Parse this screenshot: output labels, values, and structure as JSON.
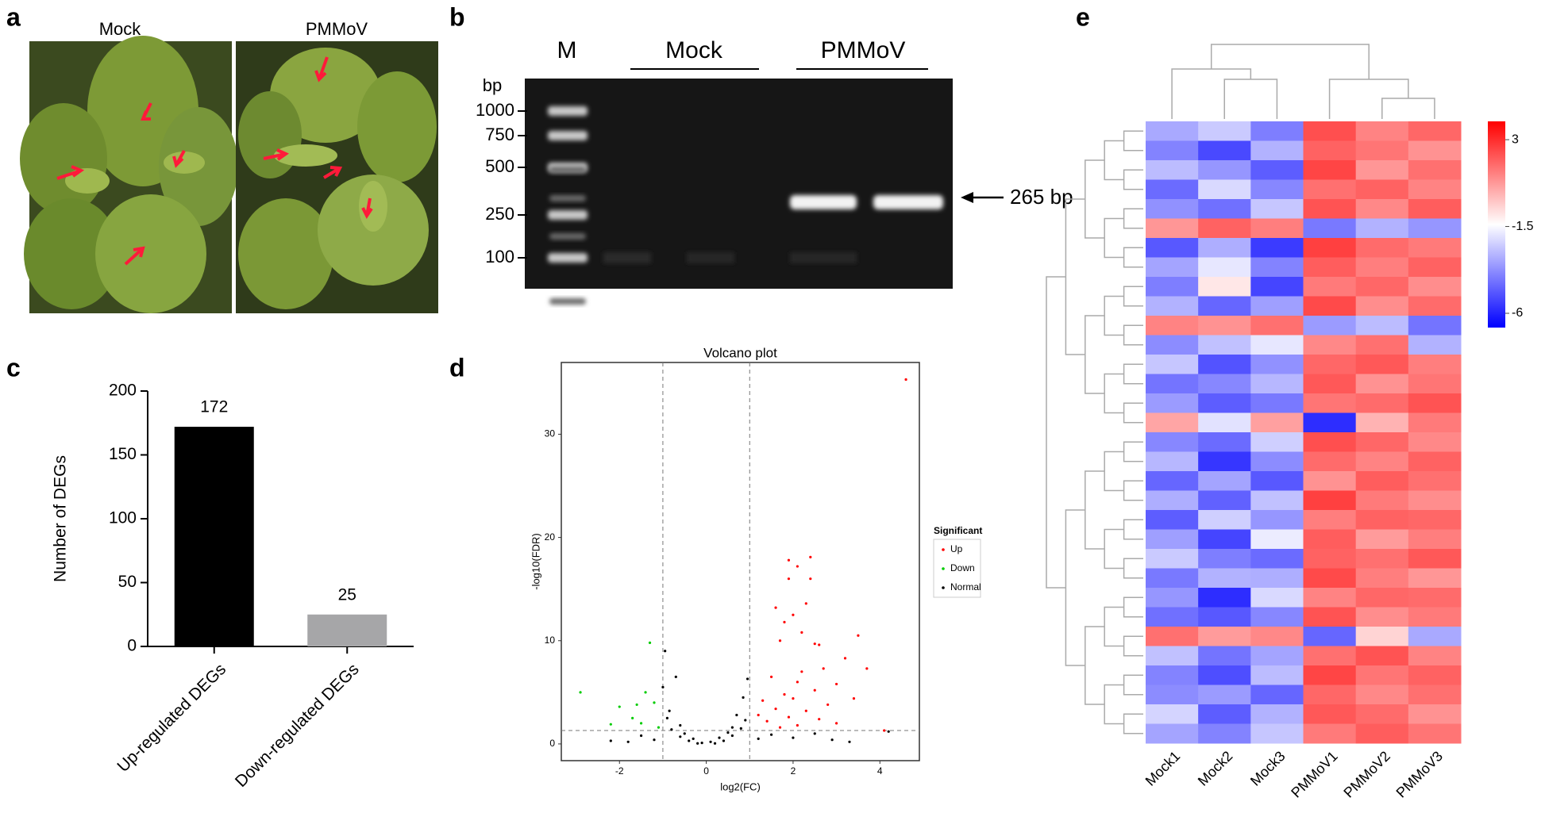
{
  "panel_labels": [
    "a",
    "b",
    "c",
    "d",
    "e"
  ],
  "photos": {
    "labels": [
      "Mock",
      "PMMoV"
    ]
  },
  "gel": {
    "lane_marker": "M",
    "groups": [
      "Mock",
      "PMMoV"
    ],
    "unit": "bp",
    "ladder": [
      1000,
      750,
      500,
      250,
      100
    ],
    "band_label": "265 bp"
  },
  "chart_data": [
    {
      "type": "bar",
      "categories": [
        "Up-regulated DEGs",
        "Down-regulated DEGs"
      ],
      "values": [
        172,
        25
      ],
      "colors": [
        "#000000",
        "#a6a6a8"
      ],
      "y_label": "Number of DEGs",
      "ylim": [
        0,
        200
      ],
      "yticks": [
        0,
        50,
        100,
        150,
        200
      ]
    },
    {
      "type": "scatter",
      "title": "Volcano plot",
      "x_label": "log2(FC)",
      "y_label": "-log10(FDR)",
      "xlim": [
        -3.34,
        4.91
      ],
      "ylim": [
        -1.62,
        36.95
      ],
      "xticks": [
        -2,
        0,
        2,
        4
      ],
      "yticks": [
        0,
        10,
        20,
        30
      ],
      "thresholds": {
        "x": [
          -1,
          1
        ],
        "y": 1.3
      },
      "legend_title": "Significant",
      "series": [
        {
          "name": "Up",
          "color": "#ff0000",
          "x": [
            4.6,
            2.4,
            1.9,
            2.1,
            1.9,
            2.4,
            2.3,
            1.6,
            2.0,
            1.8,
            2.2,
            3.5,
            1.7,
            2.5,
            2.6,
            3.2,
            2.7,
            3.7,
            2.2,
            1.5,
            2.1,
            3.0,
            2.5,
            1.8,
            3.4,
            2.0,
            1.3,
            2.8,
            1.6,
            2.3,
            1.2,
            1.9,
            2.6,
            1.4,
            3.0,
            2.1,
            1.7,
            4.1
          ],
          "values": [
            35.3,
            18.1,
            17.8,
            17.2,
            16,
            16,
            13.6,
            13.2,
            12.5,
            11.8,
            10.8,
            10.5,
            10,
            9.7,
            9.6,
            8.3,
            7.3,
            7.3,
            7,
            6.5,
            6,
            5.8,
            5.2,
            4.8,
            4.4,
            4.4,
            4.2,
            3.8,
            3.4,
            3.2,
            2.8,
            2.6,
            2.4,
            2.2,
            2.0,
            1.8,
            1.6,
            1.3
          ]
        },
        {
          "name": "Down",
          "color": "#00cc00",
          "x": [
            -1.3,
            -2.9,
            -1.4,
            -1.2,
            -2.0,
            -1.6,
            -1.7,
            -1.5,
            -1.1,
            -2.2
          ],
          "values": [
            9.8,
            5,
            5,
            4,
            3.6,
            3.8,
            2.5,
            2.0,
            1.6,
            1.9
          ]
        },
        {
          "name": "Normal",
          "color": "#000000",
          "x": [
            -0.2,
            0.2,
            -0.4,
            0.4,
            -0.6,
            0.6,
            -0.8,
            0.8,
            -0.9,
            0.9,
            -0.95,
            -1.0,
            -0.7,
            0.85,
            0.95,
            -0.85,
            0.7,
            -0.5,
            0.5,
            -1.5,
            1.5,
            -1.2,
            1.2,
            2.0,
            2.5,
            -2.2,
            2.9,
            -1.8,
            3.3,
            4.2,
            -0.3,
            0.3,
            -0.1,
            0.1,
            -0.6,
            0.6
          ],
          "values": [
            0.05,
            0.05,
            0.3,
            0.3,
            0.7,
            0.8,
            1.4,
            1.5,
            2.5,
            2.3,
            9,
            5.5,
            6.5,
            4.5,
            6.3,
            3.2,
            2.8,
            1,
            1.1,
            0.8,
            0.9,
            0.4,
            0.5,
            0.6,
            1.0,
            0.3,
            0.4,
            0.2,
            0.2,
            1.2,
            0.5,
            0.6,
            0.1,
            0.2,
            1.8,
            1.6
          ]
        }
      ]
    },
    {
      "type": "heatmap",
      "columns": [
        "Mock1",
        "Mock2",
        "Mock3",
        "PMMoV1",
        "PMMoV2",
        "PMMoV3"
      ],
      "values": [
        [
          -3.2,
          -2.5,
          -4.1,
          2.3,
          1.2,
          1.8
        ],
        [
          -4.0,
          -5.2,
          -3.0,
          1.9,
          1.5,
          0.9
        ],
        [
          -2.8,
          -3.6,
          -4.8,
          2.5,
          0.8,
          1.6
        ],
        [
          -4.5,
          -2.2,
          -3.9,
          1.6,
          1.9,
          1.2
        ],
        [
          -3.7,
          -4.4,
          -2.6,
          2.2,
          1.1,
          2.0
        ],
        [
          0.8,
          1.9,
          1.3,
          -4.2,
          -3.0,
          -3.6
        ],
        [
          -4.9,
          -3.1,
          -5.5,
          2.6,
          1.7,
          1.4
        ],
        [
          -3.3,
          -1.9,
          -4.0,
          2.0,
          1.3,
          1.9
        ],
        [
          -4.1,
          -0.9,
          -5.3,
          1.4,
          1.8,
          1.0
        ],
        [
          -3.0,
          -4.6,
          -3.4,
          2.4,
          1.0,
          1.7
        ],
        [
          1.2,
          0.9,
          1.6,
          -3.5,
          -2.8,
          -4.3
        ],
        [
          -3.8,
          -2.7,
          -1.9,
          1.1,
          1.6,
          -3.0
        ],
        [
          -2.6,
          -5.0,
          -3.7,
          1.8,
          2.1,
          1.3
        ],
        [
          -4.3,
          -3.9,
          -2.9,
          2.1,
          0.9,
          1.5
        ],
        [
          -3.5,
          -4.8,
          -4.2,
          1.5,
          1.7,
          2.2
        ],
        [
          0.5,
          -2.0,
          0.6,
          -5.8,
          0.2,
          1.4
        ],
        [
          -3.9,
          -4.5,
          -2.4,
          2.3,
          1.8,
          1.1
        ],
        [
          -2.9,
          -5.6,
          -3.8,
          1.7,
          1.2,
          1.9
        ],
        [
          -4.6,
          -3.3,
          -4.9,
          0.9,
          2.0,
          1.6
        ],
        [
          -3.1,
          -4.7,
          -2.7,
          2.6,
          1.4,
          1.0
        ],
        [
          -4.8,
          -2.4,
          -3.6,
          1.3,
          1.9,
          1.8
        ],
        [
          -3.4,
          -5.3,
          -1.8,
          2.0,
          0.7,
          1.3
        ],
        [
          -2.5,
          -4.1,
          -4.5,
          1.9,
          1.6,
          2.1
        ],
        [
          -4.2,
          -3.0,
          -3.1,
          2.4,
          1.3,
          0.8
        ],
        [
          -3.6,
          -5.8,
          -2.2,
          1.2,
          1.8,
          1.7
        ],
        [
          -4.4,
          -4.9,
          -3.9,
          2.2,
          1.0,
          1.4
        ],
        [
          1.6,
          0.7,
          1.1,
          -4.6,
          -0.5,
          -3.2
        ],
        [
          -2.7,
          -4.3,
          -3.3,
          1.6,
          2.2,
          1.2
        ],
        [
          -4.0,
          -5.1,
          -2.8,
          2.5,
          1.5,
          1.9
        ],
        [
          -3.8,
          -3.5,
          -4.6,
          1.8,
          1.1,
          1.6
        ],
        [
          -2.3,
          -4.8,
          -3.0,
          2.1,
          1.7,
          0.9
        ],
        [
          -3.3,
          -4.0,
          -2.6,
          1.4,
          2.0,
          1.5
        ]
      ],
      "colorbar": {
        "lim": [
          -6.74,
          3.95
        ],
        "ticks": [
          3,
          -1.5,
          -6
        ],
        "colors": [
          "#0000ff",
          "#ffffff",
          "#ff0000"
        ]
      }
    }
  ]
}
